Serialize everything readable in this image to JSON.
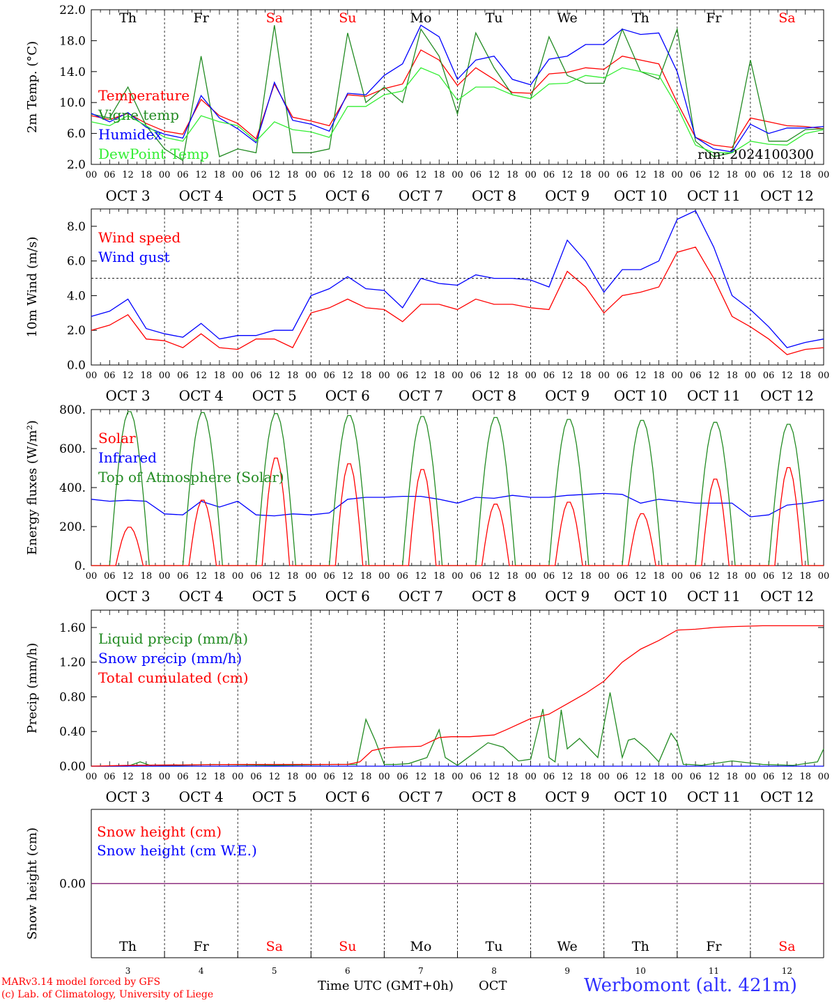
{
  "figure": {
    "footer_left_1": "MARv3.14 model forced by GFS",
    "footer_left_2": "(c) Lab. of Climatology, University of Liege",
    "footer_xlabel": "Time UTC (GMT+0h)",
    "footer_month": "OCT",
    "station": "Werbomont (alt. 421m)",
    "run_label": "run: 2024100300"
  },
  "days": [
    "Th",
    "Fr",
    "Sa",
    "Su",
    "Mo",
    "Tu",
    "We",
    "Th",
    "Fr",
    "Sa"
  ],
  "weekend_color": "#ff0000",
  "weekday_color": "#000000",
  "day_numbers": [
    "3",
    "4",
    "5",
    "6",
    "7",
    "8",
    "9",
    "10",
    "11",
    "12"
  ],
  "date_labels": [
    "OCT  3",
    "OCT  4",
    "OCT  5",
    "OCT  6",
    "OCT  7",
    "OCT  8",
    "OCT  9",
    "OCT 10",
    "OCT 11",
    "OCT 12"
  ],
  "hour_ticks": [
    "00",
    "06",
    "12",
    "18"
  ],
  "last_hour_tick": "00",
  "chart_data": [
    {
      "type": "line",
      "ylabel": "2m Temp. (°C)",
      "ylim": [
        2,
        22
      ],
      "yticks": [
        "2.0",
        "6.0",
        "10.0",
        "14.0",
        "18.0",
        "22.0"
      ],
      "x_unit": "hours since Oct 3 00 UTC",
      "xlim": [
        0,
        240
      ],
      "series": [
        {
          "name": "Temperature",
          "color": "#ff0000",
          "x": [
            0,
            6,
            12,
            18,
            24,
            30,
            36,
            42,
            48,
            54,
            60,
            66,
            72,
            78,
            84,
            90,
            96,
            102,
            108,
            114,
            120,
            126,
            132,
            138,
            144,
            150,
            156,
            162,
            168,
            174,
            180,
            186,
            192,
            198,
            204,
            210,
            216,
            222,
            228,
            234,
            240
          ],
          "y": [
            8.3,
            7.8,
            8.6,
            7.3,
            6.3,
            5.9,
            10.4,
            8.3,
            7.3,
            5.3,
            12.4,
            8.1,
            7.6,
            7.0,
            11.0,
            10.8,
            11.8,
            12.4,
            16.8,
            15.5,
            12.2,
            14.5,
            13.0,
            11.3,
            11.2,
            13.7,
            13.9,
            14.5,
            14.3,
            16.0,
            15.5,
            15.0,
            10.0,
            5.5,
            4.5,
            4.2,
            8.0,
            7.5,
            7.0,
            6.9,
            6.6
          ]
        },
        {
          "name": "Vigne temp",
          "color": "#228b22",
          "x": [
            0,
            6,
            12,
            18,
            24,
            30,
            36,
            42,
            48,
            54,
            60,
            66,
            72,
            78,
            84,
            90,
            96,
            102,
            108,
            114,
            120,
            126,
            132,
            138,
            144,
            150,
            156,
            162,
            168,
            174,
            180,
            186,
            192,
            198,
            204,
            210,
            216,
            222,
            228,
            234,
            240
          ],
          "y": [
            8.5,
            8.0,
            12.0,
            7.0,
            4.0,
            2.5,
            16.0,
            3.0,
            4.0,
            3.5,
            20.0,
            3.5,
            3.5,
            4.0,
            19.0,
            10.0,
            12.0,
            10.0,
            19.5,
            16.0,
            8.5,
            19.0,
            14.5,
            11.0,
            10.5,
            18.5,
            13.5,
            12.5,
            12.5,
            19.5,
            14.0,
            13.0,
            19.5,
            5.0,
            3.0,
            3.5,
            15.5,
            5.0,
            5.0,
            6.5,
            6.6
          ]
        },
        {
          "name": "Humidex",
          "color": "#0000ff",
          "x": [
            0,
            6,
            12,
            18,
            24,
            30,
            36,
            42,
            48,
            54,
            60,
            66,
            72,
            78,
            84,
            90,
            96,
            102,
            108,
            114,
            120,
            126,
            132,
            138,
            144,
            150,
            156,
            162,
            168,
            174,
            180,
            186,
            192,
            198,
            204,
            210,
            216,
            222,
            228,
            234,
            240
          ],
          "y": [
            8.6,
            7.5,
            8.7,
            6.8,
            5.9,
            5.4,
            10.9,
            8.0,
            6.6,
            4.8,
            12.6,
            7.7,
            7.2,
            6.3,
            11.2,
            11.0,
            13.5,
            15.0,
            20.0,
            18.5,
            13.0,
            15.5,
            16.0,
            13.0,
            12.3,
            15.6,
            16.0,
            17.5,
            17.5,
            19.5,
            18.8,
            19.0,
            14.0,
            5.5,
            4.0,
            3.6,
            7.2,
            6.0,
            6.7,
            6.7,
            6.9
          ]
        },
        {
          "name": "DewPoint Temp",
          "color": "#33ee33",
          "x": [
            0,
            6,
            12,
            18,
            24,
            30,
            36,
            42,
            48,
            54,
            60,
            66,
            72,
            78,
            84,
            90,
            96,
            102,
            108,
            114,
            120,
            126,
            132,
            138,
            144,
            150,
            156,
            162,
            168,
            174,
            180,
            186,
            192,
            198,
            204,
            210,
            216,
            222,
            228,
            234,
            240
          ],
          "y": [
            7.5,
            7.0,
            8.3,
            7.0,
            5.5,
            5.0,
            8.3,
            7.5,
            7.0,
            5.0,
            7.5,
            6.5,
            6.2,
            5.5,
            9.5,
            9.5,
            11.0,
            11.5,
            14.5,
            13.5,
            10.3,
            12.0,
            12.0,
            11.0,
            10.5,
            12.4,
            12.5,
            13.5,
            13.2,
            14.5,
            14.0,
            13.5,
            9.5,
            4.5,
            3.5,
            3.5,
            5.0,
            4.6,
            4.5,
            6.0,
            6.5
          ]
        }
      ]
    },
    {
      "type": "line",
      "ylabel": "10m Wind (m/s)",
      "ylim": [
        0,
        9
      ],
      "yticks": [
        "0.0",
        "2.0",
        "4.0",
        "6.0",
        "8.0"
      ],
      "reference_line": 5,
      "x_unit": "hours since Oct 3 00 UTC",
      "xlim": [
        0,
        240
      ],
      "series": [
        {
          "name": "Wind speed",
          "color": "#ff0000",
          "x": [
            0,
            6,
            12,
            18,
            24,
            30,
            36,
            42,
            48,
            54,
            60,
            66,
            72,
            78,
            84,
            90,
            96,
            102,
            108,
            114,
            120,
            126,
            132,
            138,
            144,
            150,
            156,
            162,
            168,
            174,
            180,
            186,
            192,
            198,
            204,
            210,
            216,
            222,
            228,
            234,
            240
          ],
          "y": [
            2.0,
            2.3,
            2.9,
            1.5,
            1.4,
            1.0,
            1.8,
            1.0,
            0.9,
            1.5,
            1.5,
            1.0,
            3.0,
            3.3,
            3.8,
            3.3,
            3.2,
            2.5,
            3.5,
            3.5,
            3.2,
            3.8,
            3.5,
            3.5,
            3.3,
            3.2,
            5.4,
            4.5,
            3.0,
            4.0,
            4.2,
            4.5,
            6.5,
            6.8,
            5.0,
            2.8,
            2.2,
            1.5,
            0.6,
            0.9,
            1.0
          ]
        },
        {
          "name": "Wind gust",
          "color": "#0000ff",
          "x": [
            0,
            6,
            12,
            18,
            24,
            30,
            36,
            42,
            48,
            54,
            60,
            66,
            72,
            78,
            84,
            90,
            96,
            102,
            108,
            114,
            120,
            126,
            132,
            138,
            144,
            150,
            156,
            162,
            168,
            174,
            180,
            186,
            192,
            198,
            204,
            210,
            216,
            222,
            228,
            234,
            240
          ],
          "y": [
            2.8,
            3.1,
            3.8,
            2.1,
            1.8,
            1.6,
            2.4,
            1.5,
            1.7,
            1.7,
            2.0,
            2.0,
            4.0,
            4.4,
            5.1,
            4.4,
            4.3,
            3.3,
            5.0,
            4.7,
            4.6,
            5.2,
            5.0,
            5.0,
            4.9,
            4.5,
            7.2,
            6.0,
            4.2,
            5.5,
            5.5,
            6.0,
            8.4,
            8.9,
            6.8,
            4.0,
            3.2,
            2.2,
            1.0,
            1.3,
            1.5
          ]
        }
      ]
    },
    {
      "type": "line",
      "ylabel": "Energy fluxes (W/m²)",
      "ylim": [
        0,
        800
      ],
      "yticks": [
        "0.",
        "200.",
        "400.",
        "600.",
        "800."
      ],
      "x_unit": "hours since Oct 3 00 UTC",
      "xlim": [
        0,
        240
      ],
      "series": [
        {
          "name": "Solar",
          "color": "#ff0000",
          "peaks": [
            200,
            340,
            560,
            530,
            500,
            320,
            330,
            270,
            450,
            510
          ]
        },
        {
          "name": "Infrared",
          "color": "#0000ff",
          "x": [
            0,
            6,
            12,
            18,
            24,
            30,
            36,
            42,
            48,
            54,
            60,
            66,
            72,
            78,
            84,
            90,
            96,
            102,
            108,
            114,
            120,
            126,
            132,
            138,
            144,
            150,
            156,
            162,
            168,
            174,
            180,
            186,
            192,
            198,
            204,
            210,
            216,
            222,
            228,
            234,
            240
          ],
          "y": [
            340,
            330,
            335,
            330,
            265,
            260,
            330,
            300,
            330,
            260,
            255,
            265,
            260,
            270,
            340,
            350,
            350,
            355,
            355,
            340,
            320,
            350,
            345,
            360,
            350,
            350,
            360,
            365,
            370,
            365,
            320,
            340,
            330,
            320,
            320,
            320,
            250,
            260,
            310,
            320,
            335
          ]
        },
        {
          "name": "Top of Atmosphere (Solar)",
          "color": "#228b22",
          "peaks": [
            795,
            790,
            785,
            775,
            770,
            765,
            755,
            750,
            740,
            730
          ]
        }
      ]
    },
    {
      "type": "line",
      "ylabel": "Precip (mm/h)",
      "ylim": [
        0,
        1.8
      ],
      "yticks": [
        "0.00",
        "0.40",
        "0.80",
        "1.20",
        "1.60"
      ],
      "x_unit": "hours since Oct 3 00 UTC",
      "xlim": [
        0,
        240
      ],
      "series": [
        {
          "name": "Liquid precip (mm/h)",
          "color": "#228b22",
          "x": [
            0,
            12,
            16,
            20,
            40,
            60,
            80,
            87,
            90,
            93,
            96,
            100,
            104,
            110,
            114,
            116,
            120,
            130,
            135,
            140,
            144,
            148,
            150,
            152,
            154,
            156,
            160,
            166,
            170,
            174,
            176,
            178,
            182,
            186,
            190,
            192,
            194,
            196,
            200,
            210,
            220,
            230,
            238,
            240
          ],
          "y": [
            0,
            0,
            0.05,
            0,
            0.02,
            0.01,
            0.02,
            0.02,
            0.54,
            0.3,
            0.02,
            0.02,
            0.03,
            0.1,
            0.42,
            0.1,
            0.01,
            0.27,
            0.22,
            0.06,
            0.08,
            0.66,
            0.1,
            0.05,
            0.65,
            0.2,
            0.32,
            0.1,
            0.85,
            0.1,
            0.3,
            0.32,
            0.2,
            0.05,
            0.38,
            0.28,
            0.02,
            0.02,
            0.01,
            0.06,
            0.02,
            0.01,
            0.05,
            0.2
          ]
        },
        {
          "name": "Snow precip (mm/h)",
          "color": "#0000ff",
          "x": [
            0,
            240
          ],
          "y": [
            0,
            0
          ]
        },
        {
          "name": "Total cumulated (cm)",
          "color": "#ff0000",
          "x": [
            0,
            12,
            48,
            84,
            88,
            92,
            96,
            100,
            108,
            114,
            118,
            124,
            132,
            136,
            144,
            150,
            156,
            162,
            168,
            174,
            180,
            186,
            192,
            198,
            204,
            210,
            220,
            240
          ],
          "y": [
            0,
            0.01,
            0.02,
            0.02,
            0.05,
            0.18,
            0.21,
            0.22,
            0.23,
            0.33,
            0.34,
            0.34,
            0.36,
            0.42,
            0.55,
            0.6,
            0.72,
            0.84,
            0.98,
            1.2,
            1.35,
            1.45,
            1.57,
            1.58,
            1.6,
            1.61,
            1.62,
            1.62
          ]
        }
      ]
    },
    {
      "type": "line",
      "ylabel": "Snow height (cm)",
      "ylim": [
        -1,
        1
      ],
      "yticks": [
        "0.00"
      ],
      "x_unit": "hours since Oct 3 00 UTC",
      "xlim": [
        0,
        240
      ],
      "series": [
        {
          "name": "Snow height (cm)",
          "color": "#ff0000",
          "x": [
            0,
            240
          ],
          "y": [
            0,
            0
          ]
        },
        {
          "name": "Snow height (cm W.E.)",
          "color": "#0000ff",
          "x": [
            0,
            240
          ],
          "y": [
            0,
            0
          ]
        }
      ]
    }
  ]
}
